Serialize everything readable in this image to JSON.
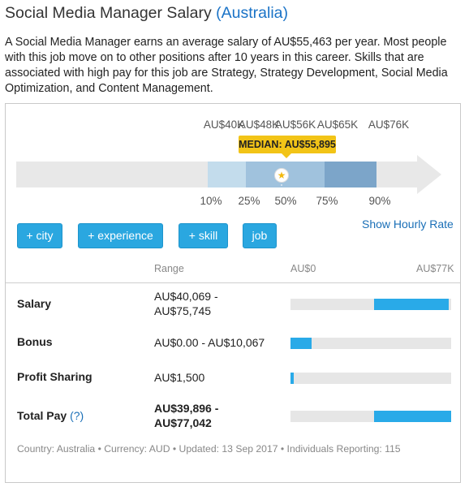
{
  "page": {
    "title_main": "Social Media Manager Salary",
    "title_location": "(Australia)",
    "intro": "A Social Media Manager earns an average salary of AU$55,463 per year. Most people with this job move on to other positions after 10 years in this career. Skills that are associated with high pay for this job are Strategy, Strategy Development, Social Media Optimization, and Content Management."
  },
  "distribution": {
    "top_labels": [
      "AU$40K",
      "AU$48K",
      "AU$56K",
      "AU$65K",
      "AU$76K"
    ],
    "percentiles": [
      "10%",
      "25%",
      "50%",
      "75%",
      "90%"
    ],
    "median_label": "MEDIAN: AU$55,895",
    "colors": {
      "outer": "#e8e8e8",
      "p10_25": "#c3dcec",
      "p25_75": "#a0c2dd",
      "p75_90": "#7ca5c9",
      "star": "#f2b90f"
    }
  },
  "buttons": {
    "city": "+ city",
    "experience": "+ experience",
    "skill": "+ skill",
    "job": "job",
    "hourly": "Show Hourly Rate"
  },
  "table": {
    "header_range": "Range",
    "header_min": "AU$0",
    "header_max": "AU$77K",
    "scale_max": 77000,
    "rows": [
      {
        "label": "Salary",
        "range_line1": "AU$40,069 -",
        "range_line2": "AU$75,745",
        "min": 40069,
        "max": 75745
      },
      {
        "label": "Bonus",
        "range_line1": "AU$0.00 - AU$10,067",
        "range_line2": "",
        "min": 0,
        "max": 10067
      },
      {
        "label": "Profit Sharing",
        "range_line1": "AU$1,500",
        "range_line2": "",
        "min": 0,
        "max": 1500
      },
      {
        "label": "Total Pay",
        "help": "(?)",
        "range_line1": "AU$39,896 -",
        "range_line2": "AU$77,042",
        "min": 39896,
        "max": 77042
      }
    ]
  },
  "footer": "Country: Australia • Currency: AUD • Updated: 13 Sep 2017 • Individuals Reporting: 115"
}
